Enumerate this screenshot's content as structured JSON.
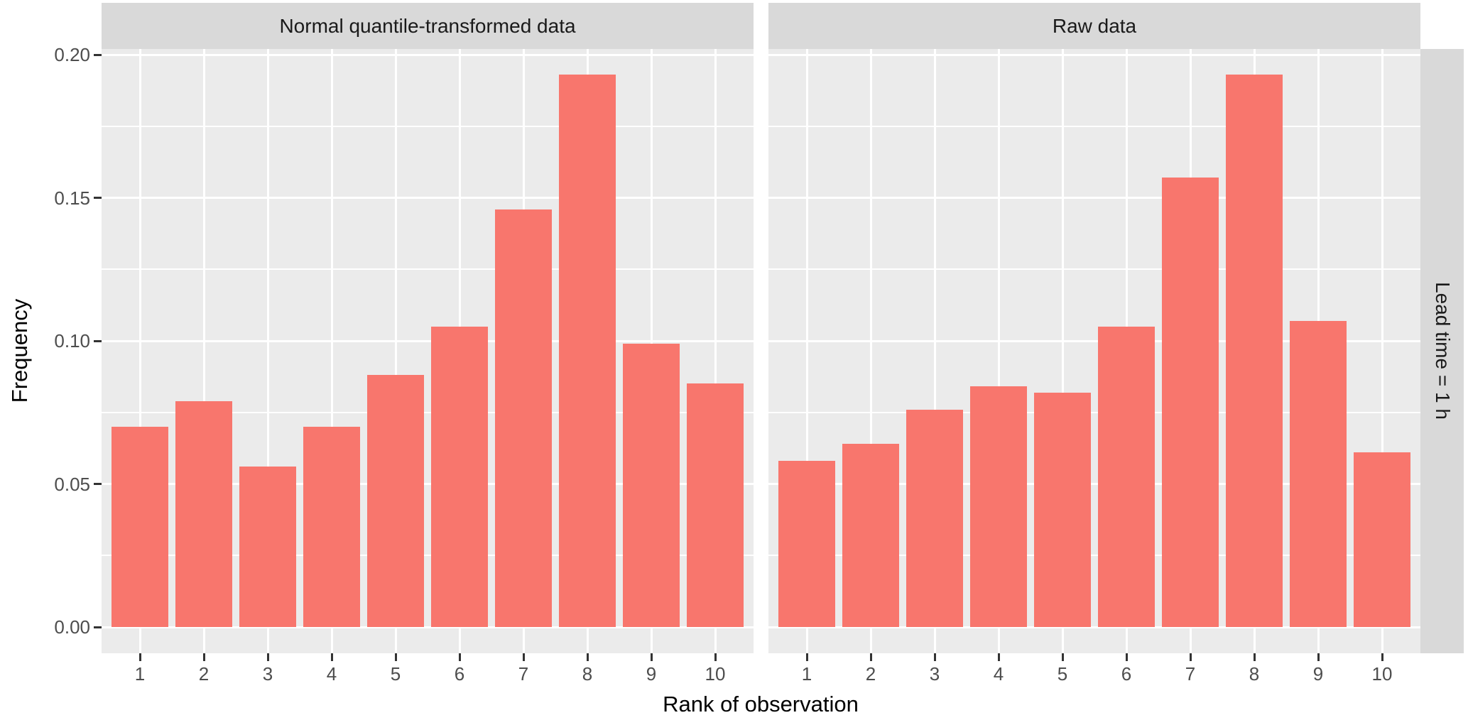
{
  "chart_data": {
    "type": "bar",
    "title": "",
    "xlabel": "Rank of observation",
    "ylabel": "Frequency",
    "categories": [
      "1",
      "2",
      "3",
      "4",
      "5",
      "6",
      "7",
      "8",
      "9",
      "10"
    ],
    "y_tick_labels": [
      "0.00",
      "0.05",
      "0.10",
      "0.15",
      "0.20"
    ],
    "y_major_breaks": [
      0,
      0.05,
      0.1,
      0.15,
      0.2
    ],
    "y_minor_breaks": [
      0.025,
      0.075,
      0.125,
      0.175
    ],
    "ylim": [
      0,
      0.2027
    ],
    "grid": "white major and minor horizontal gridlines and major vertical gridlines on grey panel",
    "legend": "none",
    "facet_row_label": "Lead time = 1 h",
    "series": [
      {
        "name": "Normal quantile-transformed data",
        "values": [
          0.07,
          0.079,
          0.056,
          0.07,
          0.088,
          0.105,
          0.146,
          0.193,
          0.099,
          0.085
        ]
      },
      {
        "name": "Raw data",
        "values": [
          0.058,
          0.064,
          0.076,
          0.084,
          0.082,
          0.105,
          0.157,
          0.193,
          0.107,
          0.061
        ]
      }
    ]
  },
  "colors": {
    "bar_fill": "#F8766D",
    "panel_background": "#EBEBEB",
    "strip_background": "#D9D9D9",
    "strip_text": "#1A1A1A",
    "gridline": "#FFFFFF",
    "tick_label": "#4D4D4D",
    "tick_mark": "#333333",
    "axis_title": "#000000"
  }
}
